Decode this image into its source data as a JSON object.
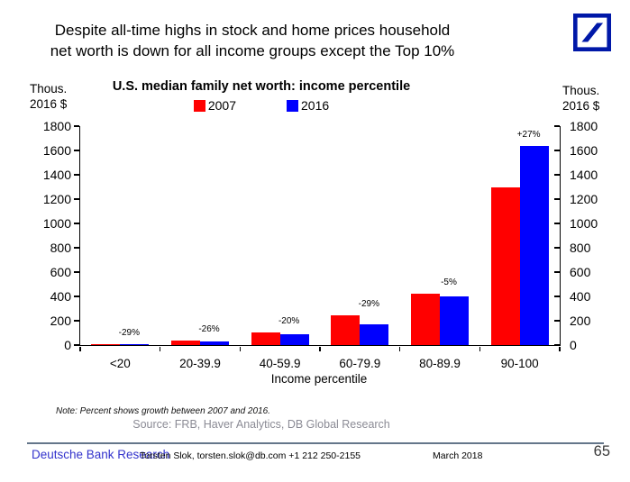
{
  "header": {
    "title_line1": "Despite all-time highs in stock and home prices household",
    "title_line2": "net worth is down for all income groups except the Top 10%"
  },
  "axis_unit": {
    "line1": "Thous.",
    "line2": "2016 $"
  },
  "chart_data": {
    "type": "bar",
    "title": "U.S. median family net worth: income percentile",
    "xlabel": "Income percentile",
    "categories": [
      "<20",
      "20-39.9",
      "40-59.9",
      "60-79.9",
      "80-89.9",
      "90-100"
    ],
    "series": [
      {
        "name": "2007",
        "color": "#ff0000",
        "values": [
          9,
          40,
          107,
          245,
          420,
          1300
        ]
      },
      {
        "name": "2016",
        "color": "#0000fe",
        "values": [
          6.5,
          30,
          86,
          172,
          400,
          1640
        ]
      }
    ],
    "bar_labels": [
      "-29%",
      "-26%",
      "-20%",
      "-29%",
      "-5%",
      "+27%"
    ],
    "yticks": [
      0,
      200,
      400,
      600,
      800,
      1000,
      1200,
      1400,
      1600,
      1800
    ],
    "ylim": [
      0,
      1800
    ],
    "legend_position": "top",
    "grid": false
  },
  "note": "Note: Percent shows growth between 2007 and 2016.",
  "source": "Source: FRB, Haver Analytics, DB Global Research",
  "footer": {
    "brand": "Deutsche Bank Research",
    "contact": "Torsten Slok, torsten.slok@db.com  +1 212 250-2155",
    "date": "March 2018",
    "page": "65"
  },
  "colors": {
    "bar_2007": "#ff0000",
    "bar_2016": "#0000fe",
    "db_logo_blue": "#0018a8",
    "brand_text": "#3333cc",
    "source_text": "#8b8b95",
    "divider": "#64768a"
  }
}
